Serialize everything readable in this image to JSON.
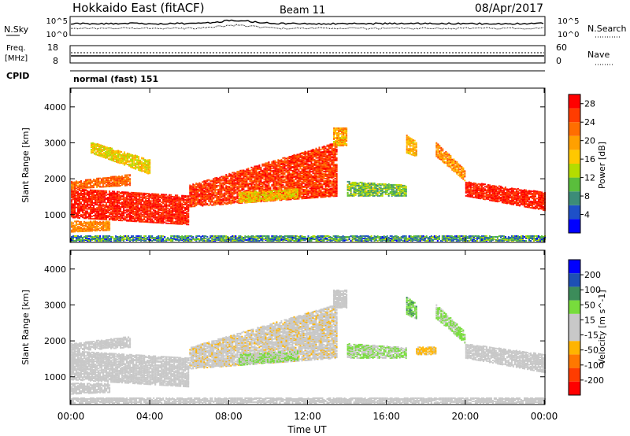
{
  "header": {
    "title": "Hokkaido East (fitACF)",
    "beam": "Beam 11",
    "date": "08/Apr/2017"
  },
  "params": {
    "nsky_label": "N.Sky",
    "nsearch_label": "N.Search",
    "noise_ticks_left": [
      "10^5",
      "10^0"
    ],
    "noise_ticks_right": [
      "10^5",
      "10^0"
    ],
    "freq_label_1": "Freq.",
    "freq_label_2": "[MHz]",
    "freq_ticks": [
      "18",
      "8"
    ],
    "nave_label": "Nave",
    "nave_ticks": [
      "60",
      "0"
    ],
    "cpid_label": "CPID",
    "cpid_value": "normal (fast) 151"
  },
  "time_axis": {
    "label": "Time UT",
    "ticks": [
      "00:00",
      "04:00",
      "08:00",
      "12:00",
      "16:00",
      "20:00",
      "00:00"
    ],
    "range_hours": [
      0,
      24
    ]
  },
  "colors": {
    "power": [
      "#0000ff",
      "#1e50c8",
      "#3c8c78",
      "#5abe3c",
      "#b4dc00",
      "#ffc800",
      "#ffa000",
      "#ff6e00",
      "#ff3c00",
      "#ff0000"
    ],
    "velocity": [
      "#ff0000",
      "#ff3c00",
      "#ff7800",
      "#ffb400",
      "#c8c8c8",
      "#c8c8c8",
      "#78dc3c",
      "#3c8c5a",
      "#1e50b4",
      "#0000ff"
    ],
    "velocity_ground": "#c0c0c0"
  },
  "chart_data": [
    {
      "type": "heatmap",
      "name": "power",
      "ylabel": "Slant Range [km]",
      "yticks": [
        "1000",
        "2000",
        "3000",
        "4000"
      ],
      "ylim": [
        250,
        4500
      ],
      "xlim": [
        0,
        24
      ],
      "colorbar_label": "Power [dB]",
      "colorbar_ticks": [
        "4",
        "8",
        "12",
        "16",
        "20",
        "24",
        "28"
      ],
      "colorbar_range": [
        0,
        30
      ],
      "regions": [
        {
          "t": [
            0,
            6
          ],
          "r0": [
            900,
            700
          ],
          "r1": [
            1700,
            1500
          ],
          "v": [
            26,
            28
          ]
        },
        {
          "t": [
            0,
            3
          ],
          "r0": [
            1700,
            1800
          ],
          "r1": [
            1900,
            2100
          ],
          "v": [
            20,
            26
          ]
        },
        {
          "t": [
            0,
            2
          ],
          "r0": [
            500,
            550
          ],
          "r1": [
            800,
            800
          ],
          "v": [
            18,
            24
          ]
        },
        {
          "t": [
            1,
            4
          ],
          "r0": [
            2700,
            2100
          ],
          "r1": [
            3000,
            2500
          ],
          "v": [
            12,
            20
          ]
        },
        {
          "t": [
            6,
            13.5
          ],
          "r0": [
            1200,
            1500
          ],
          "r1": [
            1800,
            3000
          ],
          "v": [
            22,
            30
          ]
        },
        {
          "t": [
            8.5,
            11.5
          ],
          "r0": [
            1300,
            1450
          ],
          "r1": [
            1600,
            1700
          ],
          "v": [
            12,
            22
          ]
        },
        {
          "t": [
            13.3,
            14
          ],
          "r0": [
            2900,
            2900
          ],
          "r1": [
            3400,
            3400
          ],
          "v": [
            14,
            24
          ]
        },
        {
          "t": [
            14,
            17
          ],
          "r0": [
            1500,
            1500
          ],
          "r1": [
            1900,
            1800
          ],
          "v": [
            6,
            16
          ]
        },
        {
          "t": [
            17,
            17.5
          ],
          "r0": [
            2700,
            2600
          ],
          "r1": [
            3200,
            3000
          ],
          "v": [
            14,
            22
          ]
        },
        {
          "t": [
            18.5,
            20
          ],
          "r0": [
            2600,
            1900
          ],
          "r1": [
            3000,
            2200
          ],
          "v": [
            16,
            26
          ]
        },
        {
          "t": [
            20,
            24
          ],
          "r0": [
            1500,
            1100
          ],
          "r1": [
            1900,
            1600
          ],
          "v": [
            24,
            30
          ]
        },
        {
          "t": [
            0,
            24
          ],
          "r0": [
            250,
            250
          ],
          "r1": [
            400,
            400
          ],
          "v": [
            2,
            14
          ]
        }
      ]
    },
    {
      "type": "heatmap",
      "name": "velocity",
      "ylabel": "Slant Range [km]",
      "yticks": [
        "1000",
        "2000",
        "3000",
        "4000"
      ],
      "ylim": [
        250,
        4500
      ],
      "xlim": [
        0,
        24
      ],
      "colorbar_label": "Velocity [m s^-1]",
      "colorbar_ticks": [
        "-200",
        "-100",
        "-50",
        "-15",
        "15",
        "50",
        "100",
        "200"
      ],
      "colorbar_range": [
        -250,
        250
      ],
      "regions": [
        {
          "t": [
            0,
            6
          ],
          "r0": [
            900,
            700
          ],
          "r1": [
            1700,
            1500
          ],
          "v": [
            -10,
            10
          ]
        },
        {
          "t": [
            0,
            3
          ],
          "r0": [
            1700,
            1800
          ],
          "r1": [
            1900,
            2100
          ],
          "v": [
            -10,
            10
          ]
        },
        {
          "t": [
            0,
            2
          ],
          "r0": [
            500,
            550
          ],
          "r1": [
            800,
            800
          ],
          "v": [
            -10,
            10
          ]
        },
        {
          "t": [
            6,
            13.5
          ],
          "r0": [
            1200,
            1500
          ],
          "r1": [
            1800,
            3000
          ],
          "v": [
            -60,
            10
          ]
        },
        {
          "t": [
            8.5,
            11.5
          ],
          "r0": [
            1300,
            1450
          ],
          "r1": [
            1600,
            1700
          ],
          "v": [
            20,
            80
          ]
        },
        {
          "t": [
            13.3,
            14
          ],
          "r0": [
            2900,
            2900
          ],
          "r1": [
            3400,
            3400
          ],
          "v": [
            -10,
            10
          ]
        },
        {
          "t": [
            14,
            17
          ],
          "r0": [
            1500,
            1500
          ],
          "r1": [
            1900,
            1800
          ],
          "v": [
            20,
            80
          ]
        },
        {
          "t": [
            17,
            17.5
          ],
          "r0": [
            2700,
            2600
          ],
          "r1": [
            3200,
            3000
          ],
          "v": [
            40,
            120
          ]
        },
        {
          "t": [
            17.5,
            18.5
          ],
          "r0": [
            1600,
            1600
          ],
          "r1": [
            1800,
            1800
          ],
          "v": [
            -80,
            -40
          ]
        },
        {
          "t": [
            18.5,
            20
          ],
          "r0": [
            2600,
            1900
          ],
          "r1": [
            3000,
            2200
          ],
          "v": [
            30,
            90
          ]
        },
        {
          "t": [
            20,
            24
          ],
          "r0": [
            1500,
            1100
          ],
          "r1": [
            1900,
            1600
          ],
          "v": [
            -10,
            10
          ]
        },
        {
          "t": [
            0,
            24
          ],
          "r0": [
            250,
            250
          ],
          "r1": [
            400,
            400
          ],
          "v": [
            -10,
            10
          ]
        }
      ]
    }
  ]
}
